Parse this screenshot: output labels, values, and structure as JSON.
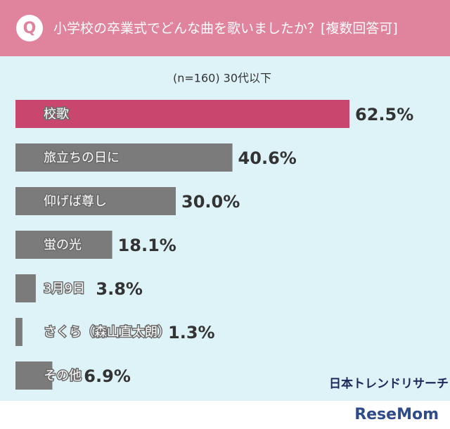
{
  "chart_data": {
    "type": "bar",
    "orientation": "horizontal",
    "badge": "Q",
    "title": "小学校の卒業式でどんな曲を歌いましたか？[複数回答可]",
    "subtitle": "(n=160) 30代以下",
    "categories": [
      "校歌",
      "旅立ちの日に",
      "仰げば尊し",
      "蛍の光",
      "3月9日",
      "さくら（森山直太朗）",
      "その他"
    ],
    "values": [
      62.5,
      40.6,
      30.0,
      18.1,
      3.8,
      1.3,
      6.9
    ],
    "value_labels": [
      "62.5%",
      "40.6%",
      "30.0%",
      "18.1%",
      "3.8%",
      "1.3%",
      "6.9%"
    ],
    "colors": [
      "#c9476f",
      "#7b7b7b",
      "#7b7b7b",
      "#7b7b7b",
      "#7b7b7b",
      "#7b7b7b",
      "#7b7b7b"
    ],
    "xlim": [
      0,
      65
    ],
    "source": "日本トレンドリサーチ",
    "watermark": "ReseMom"
  }
}
